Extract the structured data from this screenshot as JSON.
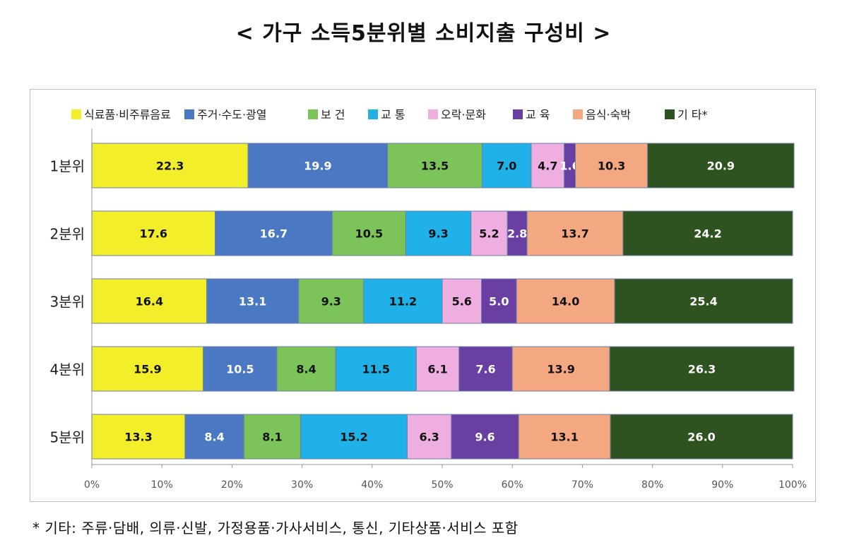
{
  "title": "< 가구 소득5분위별 소비지출 구성비 >",
  "footnote": "* 기타: 주류·담배, 의류·신발, 가정용품·가사서비스, 통신, 기타상품·서비스 포함",
  "chart_data": {
    "type": "bar",
    "orientation": "horizontal",
    "stacked": "percent",
    "title": "",
    "xlabel": "",
    "ylabel": "",
    "xlim": [
      0,
      100
    ],
    "x_ticks": [
      "0%",
      "10%",
      "20%",
      "30%",
      "40%",
      "50%",
      "60%",
      "70%",
      "80%",
      "90%",
      "100%"
    ],
    "grid": false,
    "legend_position": "top",
    "categories": [
      "1분위",
      "2분위",
      "3분위",
      "4분위",
      "5분위"
    ],
    "series": [
      {
        "name": "식료품·비주류음료",
        "color": "#f2ef2a",
        "label_color": "#111111",
        "values": [
          22.3,
          17.6,
          16.4,
          15.9,
          13.3
        ]
      },
      {
        "name": "주거·수도·광열",
        "color": "#4a78c2",
        "label_color": "#ffffff",
        "values": [
          19.9,
          16.7,
          13.1,
          10.5,
          8.4
        ]
      },
      {
        "name": "보 건",
        "color": "#7cc35a",
        "label_color": "#111111",
        "values": [
          13.5,
          10.5,
          9.3,
          8.4,
          8.1
        ]
      },
      {
        "name": "교 통",
        "color": "#1fb1e8",
        "label_color": "#111111",
        "values": [
          7.0,
          9.3,
          11.2,
          11.5,
          15.2
        ]
      },
      {
        "name": "오락·문화",
        "color": "#efaee0",
        "label_color": "#111111",
        "values": [
          4.7,
          5.2,
          5.6,
          6.1,
          6.3
        ]
      },
      {
        "name": "교 육",
        "color": "#6a3fa3",
        "label_color": "#ffffff",
        "values": [
          1.6,
          2.8,
          5.0,
          7.6,
          9.6
        ]
      },
      {
        "name": "음식·숙박",
        "color": "#f3a882",
        "label_color": "#111111",
        "values": [
          10.3,
          13.7,
          14.0,
          13.9,
          13.1
        ]
      },
      {
        "name": "기 타*",
        "color": "#2e5220",
        "label_color": "#ffffff",
        "values": [
          20.9,
          24.2,
          25.4,
          26.3,
          26.0
        ]
      }
    ]
  }
}
